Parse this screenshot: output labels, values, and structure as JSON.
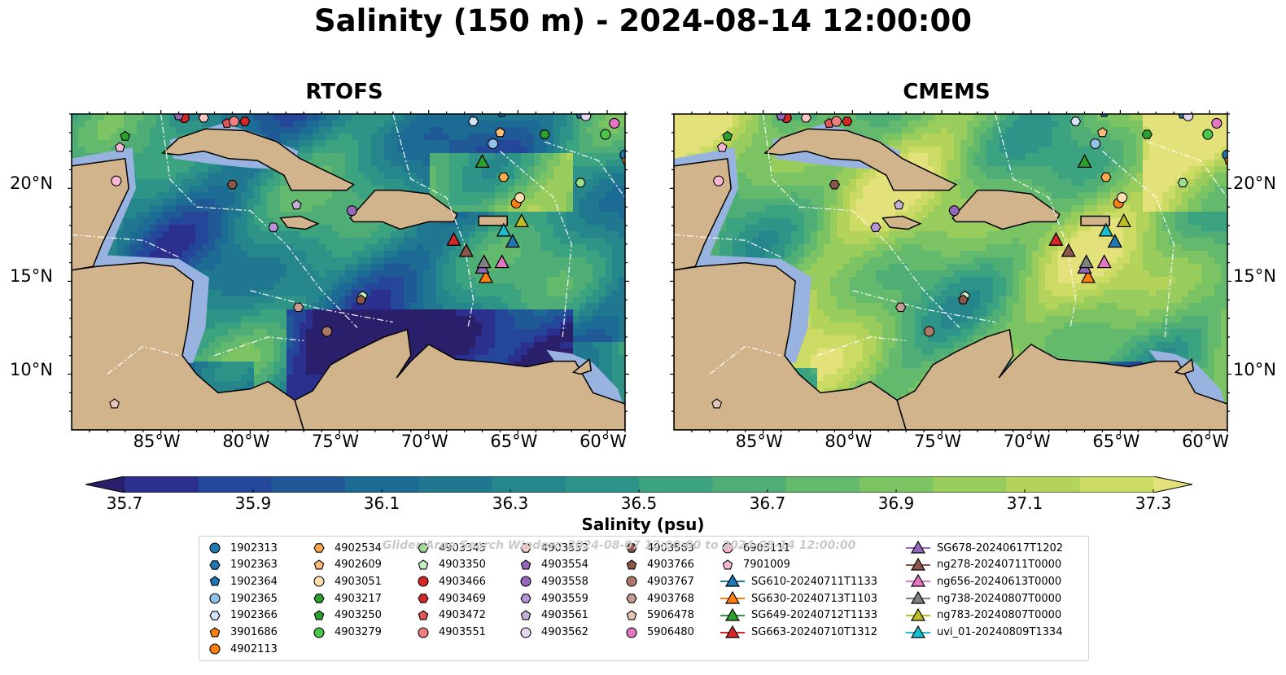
{
  "title": "Salinity (150 m) - 2024-08-14 12:00:00",
  "chart_data": {
    "type": "heatmap",
    "title": "Salinity (150 m) - 2024-08-14 12:00:00",
    "panels": [
      {
        "name": "RTOFS",
        "lon_range": [
          -90,
          -59
        ],
        "lat_range": [
          7,
          24
        ]
      },
      {
        "name": "CMEMS",
        "lon_range": [
          -90,
          -59
        ],
        "lat_range": [
          7,
          24
        ]
      }
    ],
    "x_ticks": [
      "85°W",
      "80°W",
      "75°W",
      "70°W",
      "65°W",
      "60°W"
    ],
    "x_tick_values": [
      -85,
      -80,
      -75,
      -70,
      -65,
      -60
    ],
    "y_ticks": [
      "20°N",
      "15°N",
      "10°N"
    ],
    "y_tick_values": [
      20,
      15,
      10
    ],
    "colorbar": {
      "label": "Salinity (psu)",
      "min": 35.7,
      "max": 37.3,
      "step": 0.1,
      "ticks": [
        "35.7",
        "35.9",
        "36.1",
        "36.3",
        "36.5",
        "36.7",
        "36.9",
        "37.1",
        "37.3"
      ],
      "colors": [
        "#2a1f6a",
        "#2b2f8e",
        "#25479a",
        "#1f5a96",
        "#1b6b94",
        "#207890",
        "#25868c",
        "#2e9487",
        "#3ba37f",
        "#4eae75",
        "#63b96c",
        "#7cc363",
        "#98cc5c",
        "#b3d35b",
        "#ccdb63",
        "#e3e27a"
      ],
      "extend": "both"
    },
    "overlay_note": "Glider/Argo Search Window: 2024-08-07 12:00:00 to 2024-08-14 12:00:00",
    "argo_floats": [
      {
        "id": "1902313",
        "marker": "circle",
        "color": "#1f77b4",
        "lon": -59.0,
        "lat": 21.8
      },
      {
        "id": "1902363",
        "marker": "hexagon",
        "color": "#1f77b4",
        "lon": -65.9,
        "lat": 24.1
      },
      {
        "id": "1902364",
        "marker": "pentagon",
        "color": "#1f77b4",
        "lon": -61.5,
        "lat": 24.0
      },
      {
        "id": "1902365",
        "marker": "circle",
        "color": "#8fc2e8",
        "lon": -66.4,
        "lat": 22.4
      },
      {
        "id": "1902366",
        "marker": "hexagon",
        "color": "#cfe4f5",
        "lon": -67.5,
        "lat": 23.6
      },
      {
        "id": "3901686",
        "marker": "pentagon",
        "color": "#ff7f0e",
        "lon": -58.9,
        "lat": 21.5
      },
      {
        "id": "4902113",
        "marker": "circle",
        "color": "#ff7f0e",
        "lon": -65.1,
        "lat": 19.2
      },
      {
        "id": "4902534",
        "marker": "hexagon",
        "color": "#ffa94d",
        "lon": -65.8,
        "lat": 20.6
      },
      {
        "id": "4902609",
        "marker": "pentagon",
        "color": "#ffbb78",
        "lon": -66.0,
        "lat": 23.0
      },
      {
        "id": "4903051",
        "marker": "circle",
        "color": "#ffdfb0",
        "lon": -64.9,
        "lat": 19.5
      },
      {
        "id": "4903217",
        "marker": "hexagon",
        "color": "#2ca02c",
        "lon": -63.5,
        "lat": 22.9
      },
      {
        "id": "4903250",
        "marker": "pentagon",
        "color": "#2ca02c",
        "lon": -87.0,
        "lat": 22.8
      },
      {
        "id": "4903279",
        "marker": "circle",
        "color": "#4bc44b",
        "lon": -60.1,
        "lat": 22.9
      },
      {
        "id": "4903345",
        "marker": "hexagon",
        "color": "#98df8a",
        "lon": -61.5,
        "lat": 20.3
      },
      {
        "id": "4903350",
        "marker": "pentagon",
        "color": "#c7f0c0",
        "lon": -73.7,
        "lat": 14.2
      },
      {
        "id": "4903466",
        "marker": "circle",
        "color": "#d62728",
        "lon": -83.7,
        "lat": 23.8
      },
      {
        "id": "4903469",
        "marker": "hexagon",
        "color": "#d62728",
        "lon": -80.3,
        "lat": 23.6
      },
      {
        "id": "4903472",
        "marker": "pentagon",
        "color": "#e05555",
        "lon": -81.3,
        "lat": 23.5
      },
      {
        "id": "4903551",
        "marker": "circle",
        "color": "#f08080",
        "lon": -80.9,
        "lat": 23.6
      },
      {
        "id": "4903553",
        "marker": "hexagon",
        "color": "#ffc6c6",
        "lon": -82.6,
        "lat": 23.8
      },
      {
        "id": "4903554",
        "marker": "pentagon",
        "color": "#9467bd",
        "lon": -84.0,
        "lat": 23.9
      },
      {
        "id": "4903558",
        "marker": "circle",
        "color": "#9467bd",
        "lon": -74.3,
        "lat": 18.8
      },
      {
        "id": "4903559",
        "marker": "hexagon",
        "color": "#b895d8",
        "lon": -78.7,
        "lat": 17.9
      },
      {
        "id": "4903561",
        "marker": "pentagon",
        "color": "#c5b0d5",
        "lon": -77.4,
        "lat": 19.1
      },
      {
        "id": "4903562",
        "marker": "circle",
        "color": "#e3d8ef",
        "lon": -61.2,
        "lat": 23.9
      },
      {
        "id": "4903563",
        "marker": "hexagon",
        "color": "#8c564b",
        "lon": -81.0,
        "lat": 20.2
      },
      {
        "id": "4903766",
        "marker": "pentagon",
        "color": "#8c564b",
        "lon": -73.8,
        "lat": 14.0
      },
      {
        "id": "4903767",
        "marker": "circle",
        "color": "#b07868",
        "lon": -75.7,
        "lat": 12.3
      },
      {
        "id": "4903768",
        "marker": "hexagon",
        "color": "#c49c94",
        "lon": -77.3,
        "lat": 13.6
      },
      {
        "id": "5906478",
        "marker": "pentagon",
        "color": "#e6c5b8",
        "lon": -87.6,
        "lat": 8.4
      },
      {
        "id": "5906480",
        "marker": "circle",
        "color": "#e377c2",
        "lon": -59.6,
        "lat": 23.5
      },
      {
        "id": "6903111",
        "marker": "circle",
        "color": "#f7b6d2",
        "lon": -87.5,
        "lat": 20.4
      },
      {
        "id": "7901009",
        "marker": "pentagon",
        "color": "#f7b6d2",
        "lon": -87.3,
        "lat": 22.2
      }
    ],
    "gliders": [
      {
        "id": "SG610-20240711T1133",
        "color": "#1f77b4",
        "lon": -65.3,
        "lat": 17.1
      },
      {
        "id": "SG630-20240713T1103",
        "color": "#ff7f0e",
        "lon": -66.8,
        "lat": 15.2
      },
      {
        "id": "SG649-20240712T1133",
        "color": "#2ca02c",
        "lon": -67.0,
        "lat": 21.4
      },
      {
        "id": "SG663-20240710T1312",
        "color": "#d62728",
        "lon": -68.6,
        "lat": 17.2
      },
      {
        "id": "SG678-20240617T1202",
        "color": "#9467bd",
        "lon": -67.0,
        "lat": 15.7
      },
      {
        "id": "ng278-20240711T0000",
        "color": "#8c564b",
        "lon": -67.9,
        "lat": 16.6
      },
      {
        "id": "ng656-20240613T0000",
        "color": "#e377c2",
        "lon": -65.9,
        "lat": 16.0
      },
      {
        "id": "ng738-20240807T0000",
        "color": "#7f7f7f",
        "lon": -66.9,
        "lat": 16.0
      },
      {
        "id": "ng783-20240807T0000",
        "color": "#bcbd22",
        "lon": -64.8,
        "lat": 18.2
      },
      {
        "id": "uvi_01-20240809T1334",
        "color": "#17becf",
        "lon": -65.8,
        "lat": 17.7
      }
    ]
  },
  "legend": {
    "columns": [
      [
        "1902313",
        "1902363",
        "1902364",
        "1902365",
        "1902366",
        "3901686",
        "4902113"
      ],
      [
        "4902534",
        "4902609",
        "4903051",
        "4903217",
        "4903250",
        "4903279"
      ],
      [
        "4903345",
        "4903350",
        "4903466",
        "4903469",
        "4903472",
        "4903551"
      ],
      [
        "4903553",
        "4903554",
        "4903558",
        "4903559",
        "4903561",
        "4903562"
      ],
      [
        "4903563",
        "4903766",
        "4903767",
        "4903768",
        "5906478",
        "5906480"
      ],
      [
        "6903111",
        "7901009",
        "SG610-20240711T1133",
        "SG630-20240713T1103",
        "SG649-20240712T1133",
        "SG663-20240710T1312"
      ],
      [
        "SG678-20240617T1202",
        "ng278-20240711T0000",
        "ng656-20240613T0000",
        "ng738-20240807T0000",
        "ng783-20240807T0000",
        "uvi_01-20240809T1334"
      ]
    ]
  },
  "colors": {
    "land": "#d2b48c",
    "shelf": "#99b3e0",
    "background": "#ffffff"
  }
}
